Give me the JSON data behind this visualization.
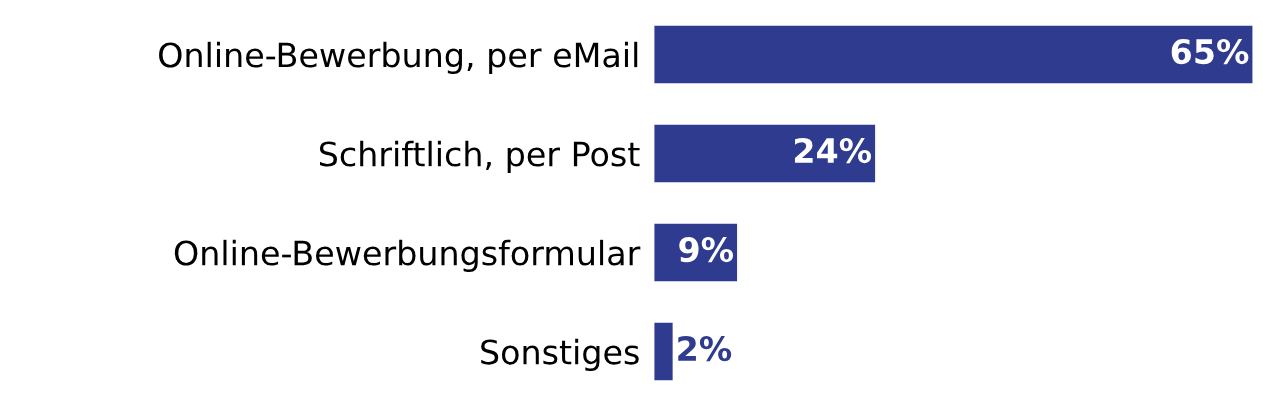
{
  "chart_data": {
    "type": "bar",
    "orientation": "horizontal",
    "categories": [
      "Online-Bewerbung, per eMail",
      "Schriftlich, per Post",
      "Online-Bewerbungsformular",
      "Sonstiges"
    ],
    "values": [
      65,
      24,
      9,
      2
    ],
    "value_labels": [
      "65%",
      "24%",
      "9%",
      "2%"
    ],
    "color": "#2f3b8f"
  }
}
